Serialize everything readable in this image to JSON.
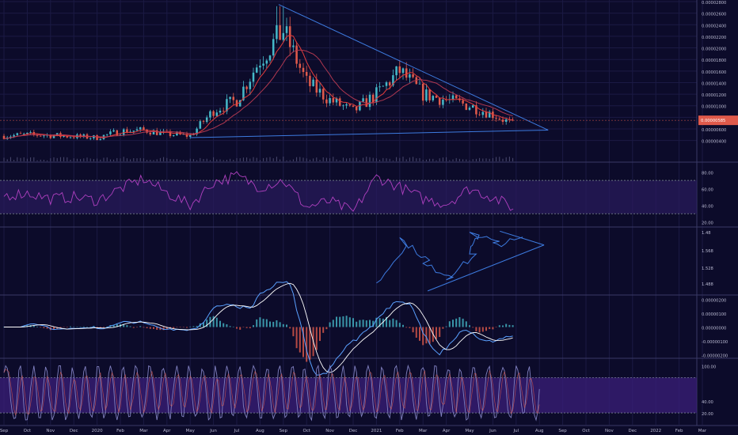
{
  "chart_data": [
    {
      "type": "candlestick",
      "pane": "price",
      "title": "",
      "price_scale": [
        "0.00002800",
        "0.00002600",
        "0.00002400",
        "0.00002200",
        "0.00002000",
        "0.00001800",
        "0.00001600",
        "0.00001400",
        "0.00001200",
        "0.00001000",
        "0.00000800",
        "0.00000600",
        "0.00000400"
      ],
      "ylim": [
        4e-07,
        2.8e-05
      ],
      "last_price_label": "0.00000585",
      "colors": {
        "up": "#45b8c8",
        "down": "#e05a4b",
        "ma_fast": "#e23c3c",
        "ma_slow": "#b03850",
        "trendline": "#3d7be0"
      },
      "trendlines": [
        {
          "name": "upper",
          "from": [
            "2020-08-25",
            2.75e-05
          ],
          "to": [
            "2021-07-30",
            5.8e-06
          ]
        },
        {
          "name": "lower",
          "from": [
            "2020-05-01",
            4.5e-06
          ],
          "to": [
            "2021-07-30",
            5.8e-06
          ]
        }
      ],
      "approx_close_series": {
        "dates": [
          "2019-09",
          "2019-10",
          "2019-11",
          "2019-12",
          "2020-01",
          "2020-02",
          "2020-03",
          "2020-04",
          "2020-05",
          "2020-06",
          "2020-07",
          "2020-08",
          "2020-09",
          "2020-10",
          "2020-11",
          "2020-12",
          "2021-01",
          "2021-02",
          "2021-03",
          "2021-04",
          "2021-05",
          "2021-06",
          "2021-07"
        ],
        "values": [
          4.8e-06,
          5e-06,
          4.9e-06,
          4.7e-06,
          4.5e-06,
          5.6e-06,
          5.8e-06,
          5.1e-06,
          4.8e-06,
          9.2e-06,
          1.1e-05,
          1.8e-05,
          2.3e-05,
          1.4e-05,
          1.1e-05,
          9e-06,
          1.2e-05,
          1.6e-05,
          1.2e-05,
          1.1e-05,
          1e-05,
          8.5e-06,
          6.5e-06
        ]
      }
    },
    {
      "type": "line",
      "pane": "rsi",
      "ticks": [
        "80.00",
        "60.00",
        "40.00",
        "20.00"
      ],
      "ylim": [
        15,
        90
      ],
      "band": [
        30,
        70
      ],
      "approx_values": [
        52,
        55,
        48,
        50,
        46,
        60,
        72,
        55,
        40,
        68,
        75,
        62,
        70,
        38,
        45,
        32,
        74,
        62,
        48,
        42,
        60,
        50,
        35
      ]
    },
    {
      "type": "line",
      "pane": "ratio",
      "ticks": [
        "1.48",
        "1.568",
        "1.528",
        "1.488"
      ],
      "ylim": [
        1.485,
        1.585
      ],
      "approx_points": [
        [
          "2021-01",
          1.5
        ],
        [
          "2021-02",
          1.57
        ],
        [
          "2021-03",
          1.53
        ],
        [
          "2021-04",
          1.51
        ],
        [
          "2021-05",
          1.55
        ],
        [
          "2021-05",
          1.58
        ],
        [
          "2021-06",
          1.56
        ],
        [
          "2021-07",
          1.57
        ]
      ]
    },
    {
      "type": "line",
      "pane": "macd",
      "ticks": [
        "0.00000200",
        "0.00000100",
        "0.00000000",
        "-0.00000100",
        "-0.00000200"
      ],
      "ylim": [
        -2.2e-06,
        2.2e-06
      ],
      "colors": {
        "macd": "#5aa0ff",
        "signal": "#ffffff",
        "hist_up": "#45b8c8",
        "hist_down": "#e05a4b"
      }
    },
    {
      "type": "line",
      "pane": "stoch",
      "ticks": [
        "100.00",
        "40.00",
        "20.00"
      ],
      "ylim": [
        0,
        110
      ],
      "band": [
        20,
        80
      ]
    }
  ],
  "x_axis": {
    "labels": [
      "Sep",
      "Oct",
      "Nov",
      "Dec",
      "2020",
      "Feb",
      "Mar",
      "Apr",
      "May",
      "Jun",
      "Jul",
      "Aug",
      "Sep",
      "Oct",
      "Nov",
      "Dec",
      "2021",
      "Feb",
      "Mar",
      "Apr",
      "May",
      "Jun",
      "Jul",
      "Aug",
      "Sep",
      "Oct",
      "Nov",
      "Dec",
      "2022",
      "Feb",
      "Mar"
    ]
  }
}
